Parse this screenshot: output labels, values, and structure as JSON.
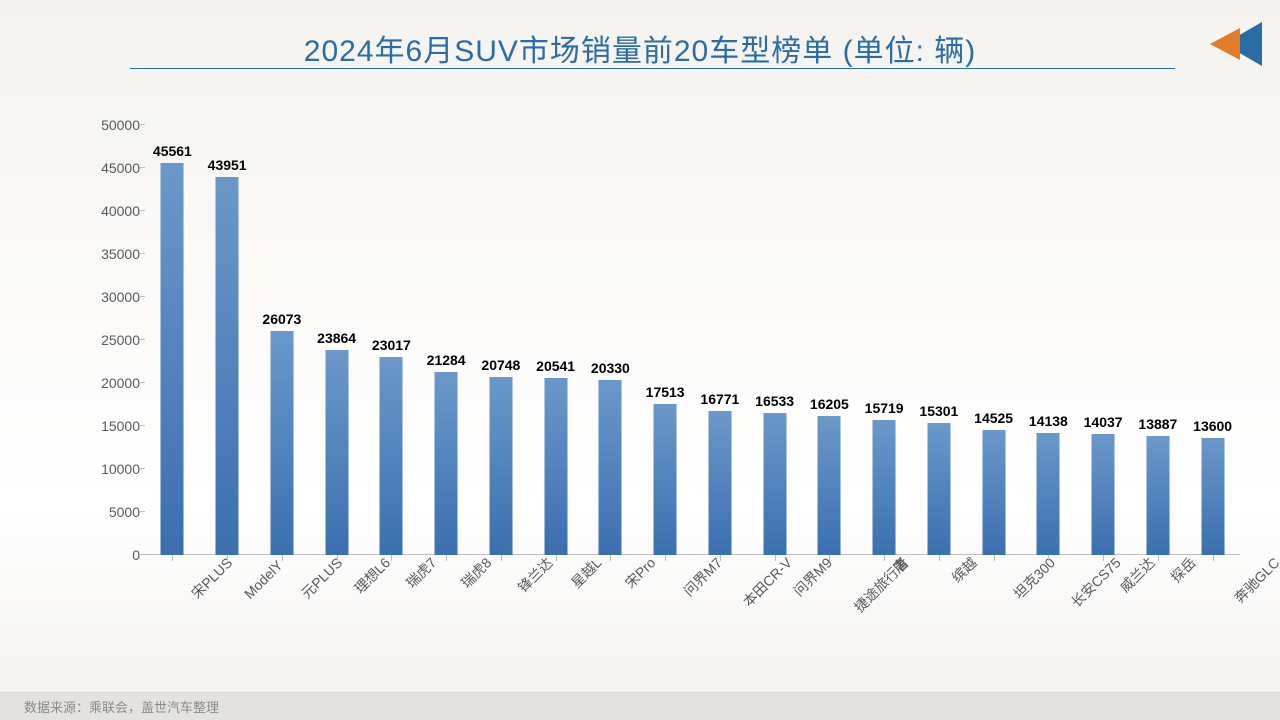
{
  "title": "2024年6月SUV市场销量前20车型榜单 (单位: 辆)",
  "title_color": "#2a6ca4",
  "footer": "数据来源：乘联会，盖世汽车整理",
  "chart": {
    "type": "bar",
    "ylim_max": 50000,
    "ytick_step": 5000,
    "yticks": [
      0,
      5000,
      10000,
      15000,
      20000,
      25000,
      30000,
      35000,
      40000,
      45000,
      50000
    ],
    "categories": [
      "宋PLUS",
      "ModelY",
      "元PLUS",
      "理想L6",
      "瑞虎7",
      "瑞虎8",
      "锋兰达",
      "星越L",
      "宋Pro",
      "问界M7",
      "本田CR-V",
      "问界M9",
      "捷途旅行者",
      "唐",
      "缤越",
      "坦克300",
      "长安CS75",
      "威兰达",
      "探岳",
      "奔驰GLC"
    ],
    "values": [
      45561,
      43951,
      26073,
      23864,
      23017,
      21284,
      20748,
      20541,
      20330,
      17513,
      16771,
      16533,
      16205,
      15719,
      15301,
      14525,
      14138,
      14037,
      13887,
      13600
    ],
    "bar_color_top": "#6a98ca",
    "bar_color_bottom": "#3b6fb0",
    "bar_width_ratio": 0.42,
    "axis_color": "#bfbfbf",
    "label_fontsize": 14,
    "value_fontsize": 14,
    "value_fontweight": "bold",
    "x_label_rotation_deg": -45,
    "background": "linear-gradient(#f5f3ef,#ffffff)"
  },
  "logo": {
    "triangle_blue": "#2a6ca4",
    "triangle_orange": "#e37b28"
  }
}
